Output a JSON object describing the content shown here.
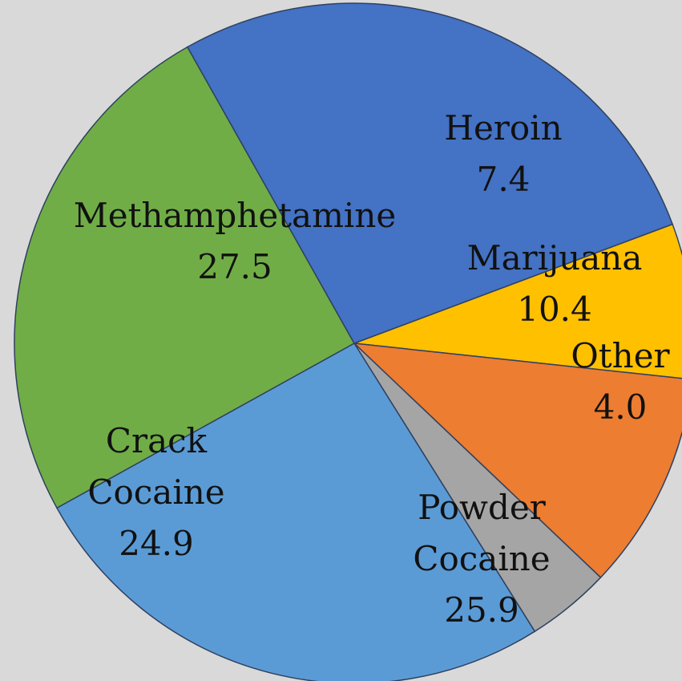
{
  "chart_data": {
    "type": "pie",
    "slices": [
      {
        "label_lines": [
          "Heroin"
        ],
        "value": 7.4,
        "value_text": "7.4",
        "color": "#ffc000"
      },
      {
        "label_lines": [
          "Marijuana"
        ],
        "value": 10.4,
        "value_text": "10.4",
        "color": "#ed7d31"
      },
      {
        "label_lines": [
          "Other"
        ],
        "value": 4.0,
        "value_text": "4.0",
        "color": "#a5a5a5"
      },
      {
        "label_lines": [
          "Powder",
          "Cocaine"
        ],
        "value": 25.9,
        "value_text": "25.9",
        "color": "#5b9bd5"
      },
      {
        "label_lines": [
          "Crack",
          "Cocaine"
        ],
        "value": 24.9,
        "value_text": "24.9",
        "color": "#70ad47"
      },
      {
        "label_lines": [
          "Methamphetamine"
        ],
        "value": 27.5,
        "value_text": "27.5",
        "color": "#4472c4"
      }
    ],
    "border_color": "#2f4060",
    "background": "#d9d9d9"
  }
}
